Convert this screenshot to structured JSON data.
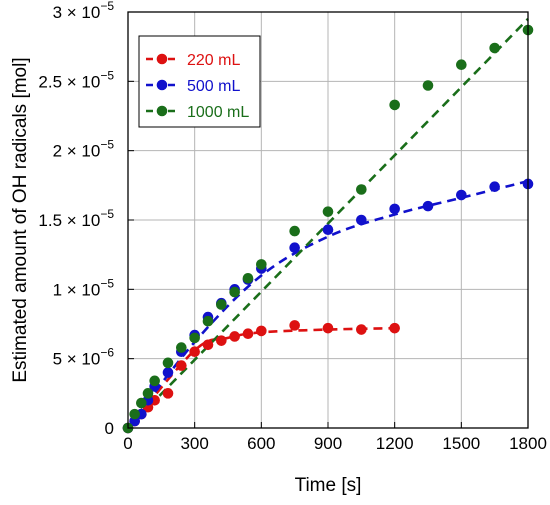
{
  "chart_data": {
    "type": "scatter",
    "title": "",
    "xlabel": "Time [s]",
    "ylabel": "Estimated amount of OH radicals [mol]",
    "xlim": [
      0,
      1800
    ],
    "ylim": [
      0,
      3e-05
    ],
    "x_ticks": [
      0,
      300,
      600,
      900,
      1200,
      1500,
      1800
    ],
    "x_tick_labels": [
      "0",
      "300",
      "600",
      "900",
      "1200",
      "1500",
      "1800"
    ],
    "y_ticks": [
      0,
      5e-06,
      1e-05,
      1.5e-05,
      2e-05,
      2.5e-05,
      3e-05
    ],
    "y_tick_labels": [
      {
        "mant": "0",
        "exp": ""
      },
      {
        "mant": "5 × 10",
        "exp": "−6"
      },
      {
        "mant": "1 × 10",
        "exp": "−5"
      },
      {
        "mant": "1.5 × 10",
        "exp": "−5"
      },
      {
        "mant": "2 × 10",
        "exp": "−5"
      },
      {
        "mant": "2.5 × 10",
        "exp": "−5"
      },
      {
        "mant": "3 × 10",
        "exp": "−5"
      }
    ],
    "grid": true,
    "legend_position": "top-left",
    "series": [
      {
        "name": "220 mL",
        "color": "#dd1111",
        "x": [
          0,
          30,
          60,
          90,
          120,
          180,
          240,
          300,
          360,
          420,
          480,
          540,
          600,
          750,
          900,
          1050,
          1200
        ],
        "y": [
          0,
          5e-07,
          1e-06,
          1.5e-06,
          2e-06,
          2.5e-06,
          4.5e-06,
          5.5e-06,
          6e-06,
          6.3e-06,
          6.6e-06,
          6.8e-06,
          7e-06,
          7.4e-06,
          7.2e-06,
          7.1e-06,
          7.2e-06
        ],
        "fit_x": [
          0,
          300,
          450,
          600,
          900,
          1200
        ],
        "fit_y": [
          0,
          5.6e-06,
          6.5e-06,
          6.9e-06,
          7.1e-06,
          7.2e-06
        ]
      },
      {
        "name": "500 mL",
        "color": "#1111cc",
        "x": [
          0,
          30,
          60,
          90,
          120,
          180,
          240,
          300,
          360,
          420,
          480,
          540,
          600,
          750,
          900,
          1050,
          1200,
          1350,
          1500,
          1650,
          1800
        ],
        "y": [
          0,
          5e-07,
          1e-06,
          2e-06,
          3e-06,
          4e-06,
          5.5e-06,
          6.7e-06,
          8e-06,
          9e-06,
          1e-05,
          1.07e-05,
          1.15e-05,
          1.3e-05,
          1.43e-05,
          1.5e-05,
          1.58e-05,
          1.6e-05,
          1.68e-05,
          1.74e-05,
          1.76e-05
        ],
        "fit_x": [
          0,
          300,
          600,
          900,
          1200,
          1500,
          1800
        ],
        "fit_y": [
          0,
          6.2e-06,
          1.1e-05,
          1.38e-05,
          1.54e-05,
          1.66e-05,
          1.78e-05
        ]
      },
      {
        "name": "1000 mL",
        "color": "#1a6e1a",
        "x": [
          0,
          30,
          60,
          90,
          120,
          180,
          240,
          300,
          360,
          420,
          480,
          540,
          600,
          750,
          900,
          1050,
          1200,
          1350,
          1500,
          1650,
          1800
        ],
        "y": [
          0,
          1e-06,
          1.8e-06,
          2.5e-06,
          3.4e-06,
          4.7e-06,
          5.8e-06,
          6.5e-06,
          7.7e-06,
          8.9e-06,
          9.8e-06,
          1.08e-05,
          1.18e-05,
          1.42e-05,
          1.56e-05,
          1.72e-05,
          2.33e-05,
          2.47e-05,
          2.62e-05,
          2.74e-05,
          2.87e-05
        ],
        "fit_x": [
          0,
          1800
        ],
        "fit_y": [
          0,
          2.95e-05
        ]
      }
    ]
  }
}
